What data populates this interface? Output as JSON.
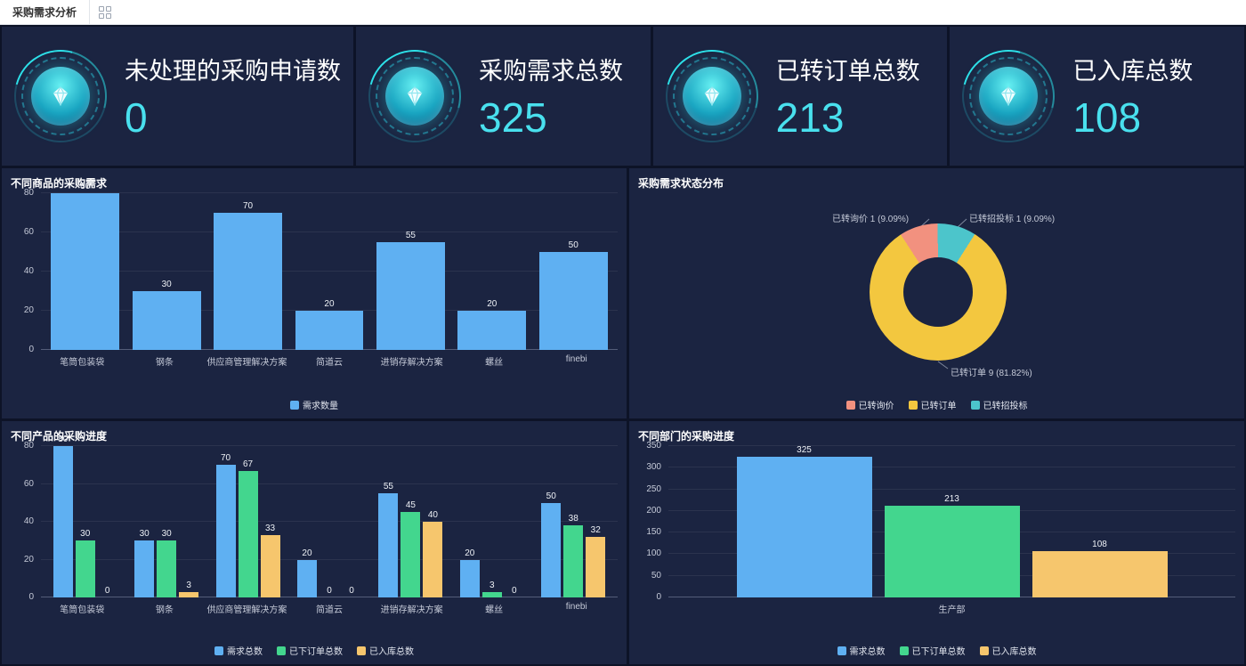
{
  "topbar": {
    "tab_label": "采购需求分析"
  },
  "kpi_cards": [
    {
      "label": "未处理的采购申请数",
      "value": "0"
    },
    {
      "label": "采购需求总数",
      "value": "325"
    },
    {
      "label": "已转订单总数",
      "value": "213"
    },
    {
      "label": "已入库总数",
      "value": "108"
    }
  ],
  "colors": {
    "panel_bg": "#1b2441",
    "kpi_value": "#49e0ee",
    "bar_blue": "#5fb0f2",
    "bar_green": "#43d68e",
    "bar_orange": "#f6c66d",
    "pie_pink": "#f2917f",
    "pie_yellow": "#f3c73f",
    "pie_teal": "#4cc5cb"
  },
  "chart_data": [
    {
      "type": "bar",
      "title": "不同商品的采购需求",
      "categories": [
        "笔筒包装袋",
        "钢条",
        "供应商管理解决方案",
        "简道云",
        "进销存解决方案",
        "螺丝",
        "finebi"
      ],
      "series": [
        {
          "name": "需求数量",
          "color": "#5fb0f2",
          "values": [
            80,
            30,
            70,
            20,
            55,
            20,
            50
          ]
        }
      ],
      "ylim": [
        0,
        80
      ],
      "yticks": [
        0,
        20,
        40,
        60,
        80
      ],
      "legend_position": "bottom",
      "grid": true
    },
    {
      "type": "pie",
      "title": "采购需求状态分布",
      "donut": true,
      "slices": [
        {
          "name": "已转询价",
          "value": 1,
          "pct": "9.09%",
          "color": "#f2917f"
        },
        {
          "name": "已转招投标",
          "value": 1,
          "pct": "9.09%",
          "color": "#4cc5cb"
        },
        {
          "name": "已转订单",
          "value": 9,
          "pct": "81.82%",
          "color": "#f3c73f"
        }
      ],
      "legend": [
        "已转询价",
        "已转订单",
        "已转招投标"
      ],
      "callouts": [
        "已转询价 1 (9.09%)",
        "已转招投标 1 (9.09%)",
        "已转订单 9 (81.82%)"
      ],
      "legend_position": "bottom"
    },
    {
      "type": "bar",
      "title": "不同产品的采购进度",
      "categories": [
        "笔筒包装袋",
        "钢条",
        "供应商管理解决方案",
        "简道云",
        "进销存解决方案",
        "螺丝",
        "finebi"
      ],
      "series": [
        {
          "name": "需求总数",
          "color": "#5fb0f2",
          "values": [
            80,
            30,
            70,
            20,
            55,
            20,
            50
          ]
        },
        {
          "name": "已下订单总数",
          "color": "#43d68e",
          "values": [
            30,
            30,
            67,
            0,
            45,
            3,
            38
          ]
        },
        {
          "name": "已入库总数",
          "color": "#f6c66d",
          "values": [
            0,
            3,
            33,
            0,
            40,
            0,
            32
          ]
        }
      ],
      "ylim": [
        0,
        80
      ],
      "yticks": [
        0,
        20,
        40,
        60,
        80
      ],
      "legend_position": "bottom",
      "grid": true
    },
    {
      "type": "bar",
      "title": "不同部门的采购进度",
      "categories": [
        "生产部"
      ],
      "series": [
        {
          "name": "需求总数",
          "color": "#5fb0f2",
          "values": [
            325
          ]
        },
        {
          "name": "已下订单总数",
          "color": "#43d68e",
          "values": [
            213
          ]
        },
        {
          "name": "已入库总数",
          "color": "#f6c66d",
          "values": [
            108
          ]
        }
      ],
      "ylim": [
        0,
        350
      ],
      "yticks": [
        0,
        50,
        100,
        150,
        200,
        250,
        300,
        350
      ],
      "legend_position": "bottom",
      "grid": true
    }
  ]
}
